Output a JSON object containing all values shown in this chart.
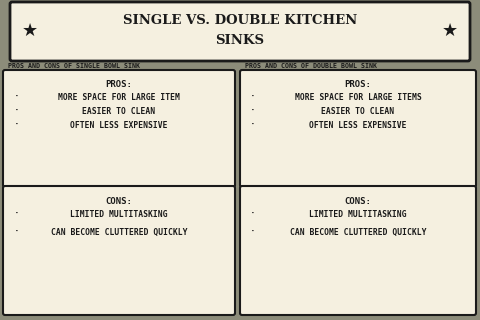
{
  "title_line1": "SINGLE VS. DOUBLE KITCHEN",
  "title_line2": "SINKS",
  "bg_color": "#8c8c7a",
  "box_color": "#f5f0e0",
  "box_edge_color": "#1a1a1a",
  "text_color": "#1a1a1a",
  "header_left": "PROS AND CONS OF SINGLE BOWL SINK",
  "header_right": "PROS AND CONS OF DOUBLE BOWL SINK",
  "single_pros_title": "PROS:",
  "single_pros": [
    "MORE SPACE FOR LARGE ITEM",
    "EASIER TO CLEAN",
    "OFTEN LESS EXPENSIVE"
  ],
  "single_cons_title": "CONS:",
  "single_cons": [
    "LIMITED MULTITASKING",
    "CAN BECOME CLUTTERED QUICKLY"
  ],
  "double_pros_title": "PROS:",
  "double_pros": [
    "MORE SPACE FOR LARGE ITEMS",
    "EASIER TO CLEAN",
    "OFTEN LESS EXPENSIVE"
  ],
  "double_cons_title": "CONS:",
  "double_cons": [
    "LIMITED MULTITASKING",
    "CAN BECOME CLUTTERED QUICKLY"
  ],
  "bullet": "·",
  "star": "★",
  "title_fontsize": 9.5,
  "header_fontsize": 4.8,
  "section_title_fontsize": 6.5,
  "item_fontsize": 5.8,
  "star_fontsize": 13
}
